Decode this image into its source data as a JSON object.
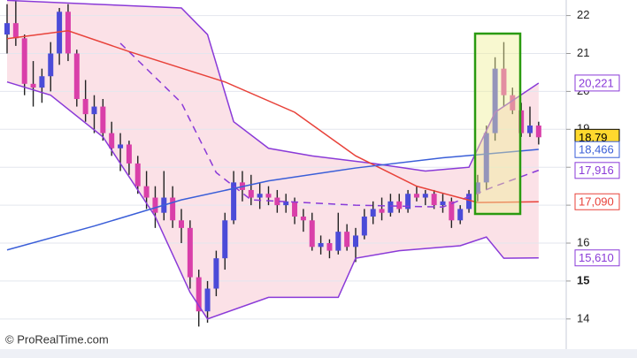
{
  "chart_data": {
    "type": "candlestick",
    "watermark": "© ProRealTime.com",
    "ylim": [
      13.32,
      22.41
    ],
    "yticks": [
      14,
      15,
      16,
      17,
      18,
      19,
      20,
      21,
      22
    ],
    "bold_tick": 15,
    "up_color": "#4b4bd8",
    "down_color": "#d93fa9",
    "open": [
      21.5,
      21.8,
      21.4,
      20.2,
      20.1,
      20.4,
      21.0,
      22.1,
      21.0,
      19.8,
      19.4,
      19.6,
      18.9,
      18.5,
      18.6,
      18.1,
      17.5,
      17.2,
      16.8,
      17.2,
      16.6,
      16.4,
      15.1,
      14.2,
      14.8,
      15.6,
      16.6,
      17.6,
      17.4,
      17.2,
      17.3,
      17.2,
      17.0,
      17.1,
      16.7,
      16.6,
      15.9,
      16.0,
      15.8,
      16.3,
      15.9,
      16.2,
      16.7,
      16.9,
      16.8,
      17.1,
      16.9,
      17.3,
      17.2,
      17.3,
      17.0,
      17.1,
      16.6,
      16.9,
      17.3,
      17.6,
      18.9,
      20.6,
      19.9,
      19.5,
      18.9,
      19.1
    ],
    "high": [
      22.3,
      22.4,
      21.5,
      20.8,
      20.6,
      21.3,
      22.2,
      22.3,
      21.1,
      20.3,
      19.9,
      19.8,
      19.2,
      18.9,
      18.7,
      18.3,
      17.9,
      17.5,
      17.9,
      17.5,
      16.9,
      16.6,
      15.3,
      15.0,
      15.8,
      16.8,
      17.9,
      17.9,
      17.8,
      17.6,
      17.5,
      17.4,
      17.3,
      17.2,
      16.9,
      16.8,
      16.2,
      16.1,
      16.8,
      16.5,
      16.4,
      16.9,
      17.1,
      17.2,
      17.3,
      17.3,
      17.4,
      17.5,
      17.4,
      17.4,
      17.3,
      17.2,
      17.0,
      17.4,
      17.8,
      19.1,
      20.9,
      21.3,
      20.1,
      19.7,
      19.6,
      19.2
    ],
    "low": [
      21.0,
      21.2,
      19.9,
      19.6,
      19.7,
      20.0,
      20.7,
      20.8,
      19.6,
      19.2,
      18.9,
      18.7,
      18.3,
      17.9,
      17.8,
      17.3,
      16.9,
      16.4,
      16.6,
      16.4,
      16.0,
      14.8,
      13.8,
      13.9,
      14.6,
      15.3,
      16.5,
      17.1,
      17.0,
      16.9,
      17.0,
      16.8,
      16.8,
      16.5,
      16.3,
      15.8,
      15.7,
      15.6,
      15.7,
      15.8,
      15.5,
      16.1,
      16.5,
      16.6,
      16.7,
      16.8,
      16.8,
      17.1,
      17.0,
      16.9,
      16.8,
      16.4,
      16.5,
      16.8,
      17.1,
      17.4,
      18.7,
      19.6,
      19.4,
      18.8,
      18.8,
      18.6
    ],
    "close": [
      21.8,
      21.4,
      20.2,
      20.1,
      20.4,
      21.0,
      22.1,
      21.0,
      19.8,
      19.4,
      19.6,
      18.9,
      18.5,
      18.6,
      18.1,
      17.5,
      17.2,
      16.8,
      17.2,
      16.6,
      16.4,
      15.1,
      14.2,
      14.8,
      15.6,
      16.6,
      17.6,
      17.4,
      17.2,
      17.3,
      17.2,
      17.0,
      17.1,
      16.7,
      16.6,
      15.9,
      16.0,
      15.8,
      16.3,
      15.9,
      16.2,
      16.7,
      16.9,
      16.8,
      17.1,
      16.9,
      17.3,
      17.2,
      17.3,
      17.0,
      17.1,
      16.6,
      16.9,
      17.3,
      17.6,
      18.9,
      20.6,
      19.9,
      19.5,
      18.9,
      19.1,
      18.79
    ],
    "series": [
      {
        "color": "#8a3ad8",
        "x": [
          0,
          10,
          20,
          23,
          26,
          30,
          35,
          42,
          48,
          53,
          56,
          61
        ],
        "values": [
          22.4,
          22.3,
          22.2,
          21.5,
          19.2,
          18.5,
          18.3,
          18.1,
          17.9,
          18.0,
          19.45,
          20.22
        ]
      },
      {
        "color": "#8a3ad8",
        "x": [
          0,
          5,
          11,
          17,
          21,
          23,
          30,
          38,
          40,
          45,
          52,
          55,
          57,
          61
        ],
        "values": [
          20.25,
          19.9,
          18.8,
          16.7,
          14.7,
          14.0,
          14.57,
          14.57,
          15.6,
          15.8,
          15.93,
          16.16,
          15.6,
          15.61
        ]
      },
      {
        "color": "#8a3ad8",
        "dashed": true,
        "x": [
          13,
          20,
          24,
          28,
          40,
          50,
          56,
          61
        ],
        "values": [
          21.27,
          19.7,
          17.86,
          17.14,
          17.0,
          16.95,
          17.5,
          17.92
        ]
      },
      {
        "color": "#e8423a",
        "x": [
          0,
          7,
          14,
          25,
          33,
          40,
          47,
          54,
          61
        ],
        "values": [
          21.39,
          21.6,
          21.05,
          20.25,
          19.45,
          18.3,
          17.5,
          17.07,
          17.09
        ]
      },
      {
        "color": "#3a5ed8",
        "x": [
          0,
          10,
          20,
          30,
          40,
          50,
          61
        ],
        "values": [
          15.82,
          16.45,
          17.14,
          17.64,
          17.98,
          18.25,
          18.47
        ]
      }
    ],
    "price_labels": [
      {
        "value": 20.221,
        "label": "20,221",
        "color": "#8a3ad8",
        "background": "#ffffff"
      },
      {
        "value": 18.79,
        "label": "18,79",
        "color": "#000000",
        "background": "#ffd92e"
      },
      {
        "value": 18.466,
        "label": "18,466",
        "color": "#3a5ed8",
        "background": "#ffffff"
      },
      {
        "value": 17.916,
        "label": "17,916",
        "color": "#8a3ad8",
        "background": "#ffffff"
      },
      {
        "value": 17.09,
        "label": "17,090",
        "color": "#e8423a",
        "background": "#ffffff"
      },
      {
        "value": 15.61,
        "label": "15,610",
        "color": "#8a3ad8",
        "background": "#ffffff"
      }
    ]
  }
}
